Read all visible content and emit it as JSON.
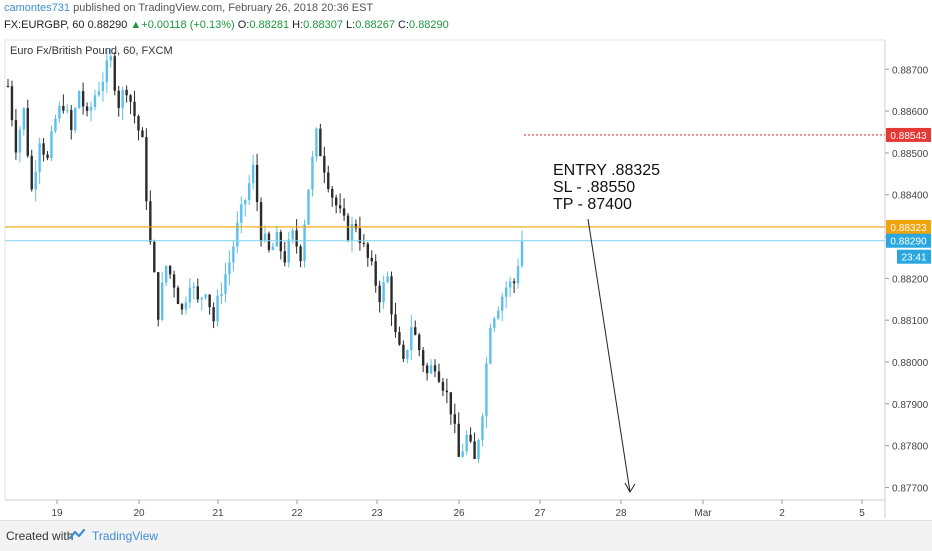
{
  "header": {
    "username": "camontes731",
    "published_text": "published on TradingView.com, February 26, 2018 20:36 EST",
    "symbol": "FX:EURGBP, 60",
    "last": "0.88290",
    "change_arrow": "▲",
    "change": "+0.00118 (+0.13%)",
    "o_label": "O:",
    "o_value": "0.88281",
    "h_label": "H:",
    "h_value": "0.88307",
    "l_label": "L:",
    "l_value": "0.88267",
    "c_label": "C:",
    "c_value": "0.88290"
  },
  "chart_title": "Euro Fx/British Pound, 60, FXCM",
  "annotation": {
    "entry": "ENTRY .88325",
    "sl": "SL - .88550",
    "tp": "TP - 87400"
  },
  "footer": {
    "created_with": "Created with",
    "brand": "TradingView"
  },
  "colors": {
    "up_candle": "#5bc0eb",
    "down_candle": "#2b2b2b",
    "entry_line": "#f0a30a",
    "sl_line": "#e53935",
    "price_line": "#7fd3f0",
    "price_badge": "#29a8e0"
  },
  "chart_data": {
    "type": "candlestick",
    "x_tick_labels": [
      "19",
      "20",
      "21",
      "22",
      "23",
      "26",
      "27",
      "28",
      "Mar",
      "2",
      "5"
    ],
    "y_tick_labels": [
      "0.88700",
      "0.88600",
      "0.88500",
      "0.88400",
      "0.88300",
      "0.88200",
      "0.88100",
      "0.88000",
      "0.87900",
      "0.87800",
      "0.87700"
    ],
    "ylim": [
      0.8767,
      0.8877
    ],
    "price_badges": [
      {
        "value": 0.88543,
        "label": "0.88543",
        "role": "stop-loss"
      },
      {
        "value": 0.88323,
        "label": "0.88323",
        "role": "entry"
      },
      {
        "value": 0.8829,
        "label": "0.88290",
        "role": "last-price"
      }
    ],
    "countdown_label": "23:41",
    "arrow_target": {
      "x_day": "28",
      "price": 0.877
    },
    "path_points": [
      [
        0,
        0.8866
      ],
      [
        2,
        0.8852
      ],
      [
        4,
        0.886
      ],
      [
        6,
        0.8841
      ],
      [
        8,
        0.8854
      ],
      [
        10,
        0.8848
      ],
      [
        12,
        0.8858
      ],
      [
        14,
        0.8862
      ],
      [
        16,
        0.8855
      ],
      [
        18,
        0.8865
      ],
      [
        20,
        0.8858
      ],
      [
        22,
        0.8864
      ],
      [
        24,
        0.8868
      ],
      [
        26,
        0.8872
      ],
      [
        28,
        0.8862
      ],
      [
        30,
        0.8866
      ],
      [
        32,
        0.8859
      ],
      [
        34,
        0.8852
      ],
      [
        36,
        0.8828
      ],
      [
        38,
        0.8812
      ],
      [
        40,
        0.8823
      ],
      [
        42,
        0.8819
      ],
      [
        44,
        0.8812
      ],
      [
        46,
        0.882
      ],
      [
        48,
        0.8814
      ],
      [
        50,
        0.8818
      ],
      [
        52,
        0.881
      ],
      [
        54,
        0.8818
      ],
      [
        56,
        0.8824
      ],
      [
        58,
        0.8832
      ],
      [
        60,
        0.8839
      ],
      [
        62,
        0.8846
      ],
      [
        64,
        0.8831
      ],
      [
        66,
        0.8826
      ],
      [
        68,
        0.8829
      ],
      [
        70,
        0.8825
      ],
      [
        72,
        0.883
      ],
      [
        74,
        0.8826
      ],
      [
        76,
        0.8842
      ],
      [
        78,
        0.8854
      ],
      [
        80,
        0.8847
      ],
      [
        82,
        0.884
      ],
      [
        84,
        0.8835
      ],
      [
        86,
        0.8831
      ],
      [
        88,
        0.8833
      ],
      [
        90,
        0.8827
      ],
      [
        92,
        0.8822
      ],
      [
        94,
        0.8816
      ],
      [
        96,
        0.882
      ],
      [
        98,
        0.8806
      ],
      [
        100,
        0.8799
      ],
      [
        102,
        0.8809
      ],
      [
        104,
        0.8803
      ],
      [
        106,
        0.8797
      ],
      [
        108,
        0.88
      ],
      [
        110,
        0.8795
      ],
      [
        112,
        0.8789
      ],
      [
        114,
        0.8777
      ],
      [
        116,
        0.8782
      ],
      [
        118,
        0.8776
      ],
      [
        120,
        0.8789
      ],
      [
        122,
        0.881
      ],
      [
        124,
        0.8814
      ],
      [
        126,
        0.8818
      ],
      [
        128,
        0.8819
      ],
      [
        130,
        0.8829
      ]
    ]
  }
}
